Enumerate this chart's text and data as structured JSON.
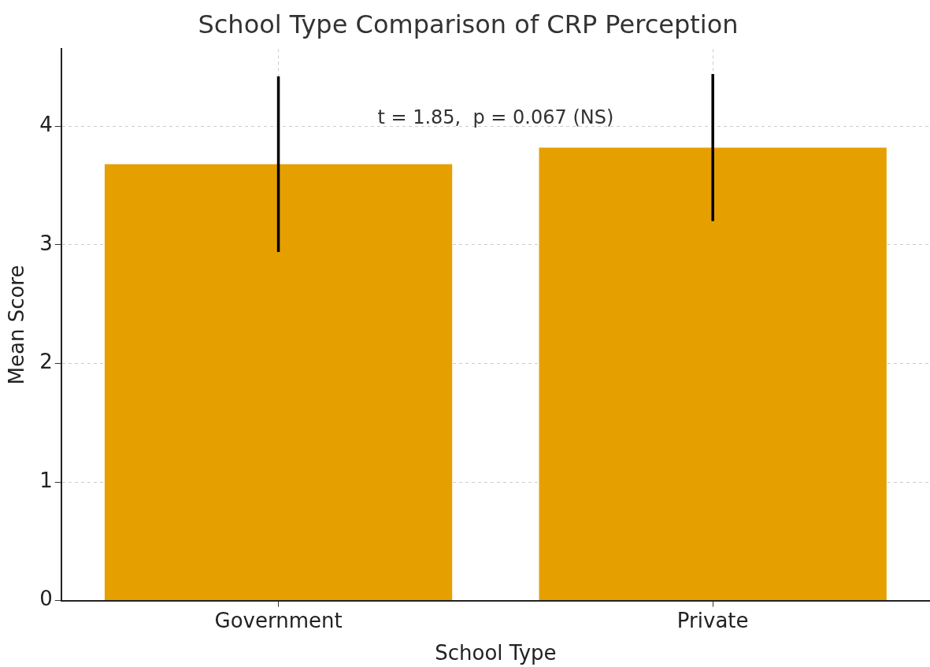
{
  "chart_data": {
    "type": "bar",
    "title": "School Type Comparison of CRP Perception",
    "xlabel": "School Type",
    "ylabel": "Mean Score",
    "categories": [
      "Government",
      "Private"
    ],
    "values": [
      3.68,
      3.82
    ],
    "errors": [
      0.74,
      0.62
    ],
    "color": "#e5a000",
    "ylim": [
      0,
      4.65
    ],
    "yticks": [
      0,
      1,
      2,
      3,
      4
    ],
    "grid": true,
    "annotations": [
      "t = 1.85,  p = 0.067 (NS)"
    ]
  }
}
